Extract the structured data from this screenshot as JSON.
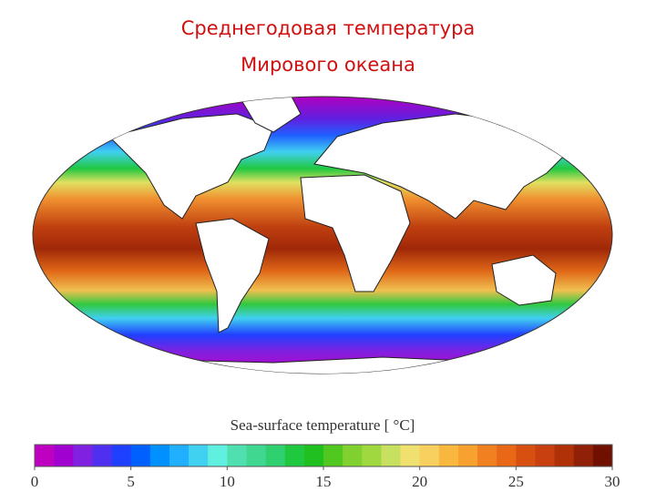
{
  "header": {
    "title_lines": [
      "Среднегодовая температура",
      "Мирового океана"
    ]
  },
  "colorbar": {
    "label": "Sea-surface temperature [ °C]",
    "range": [
      0,
      30
    ],
    "ticks": [
      0,
      5,
      10,
      15,
      20,
      25,
      30
    ],
    "colors": [
      "#c000c0",
      "#a000d0",
      "#8020e0",
      "#5030f0",
      "#2040ff",
      "#0060ff",
      "#0090ff",
      "#20b0ff",
      "#40d0f0",
      "#60f0e0",
      "#50e0b0",
      "#40d890",
      "#30d070",
      "#20c840",
      "#20c020",
      "#50c820",
      "#80d030",
      "#a0d840",
      "#c8e060",
      "#f0e070",
      "#f8d060",
      "#f8b840",
      "#f8a030",
      "#f08020",
      "#e86818",
      "#d85010",
      "#c84010",
      "#b03008",
      "#902008",
      "#701000"
    ]
  }
}
